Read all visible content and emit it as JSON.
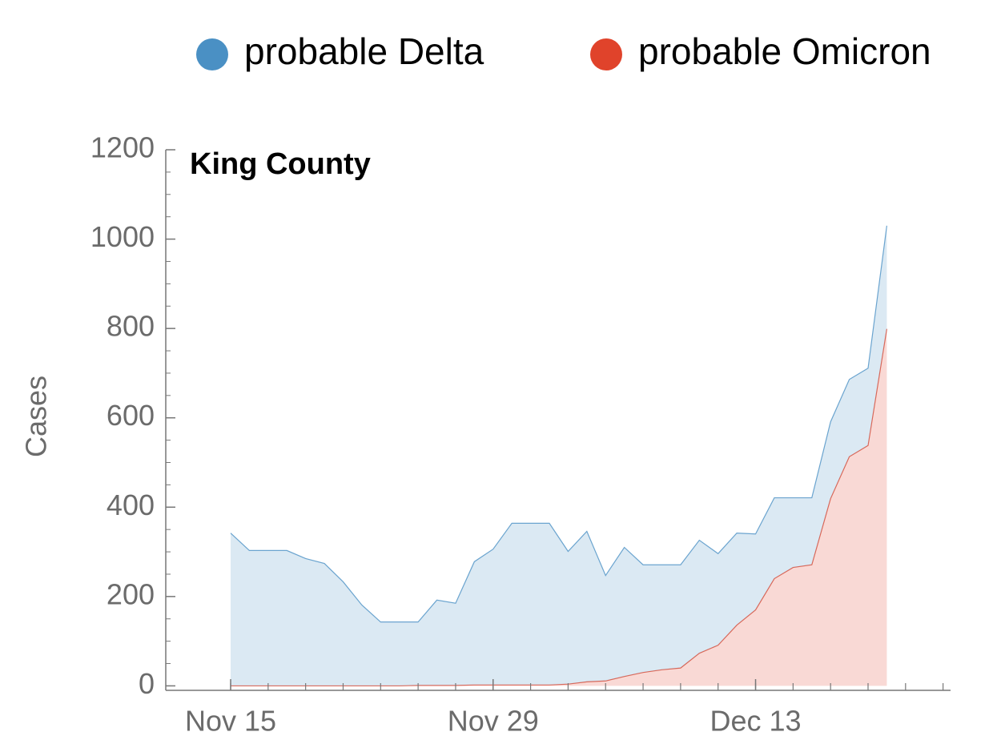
{
  "chart_data": {
    "type": "stacked-area",
    "title": "King County",
    "ylabel": "Cases",
    "categories": [
      "Nov 15",
      null,
      null,
      null,
      null,
      null,
      null,
      null,
      null,
      null,
      null,
      null,
      null,
      null,
      "Nov 29",
      null,
      null,
      null,
      null,
      null,
      null,
      null,
      null,
      null,
      null,
      null,
      null,
      null,
      "Dec 13",
      null,
      null,
      null,
      null,
      null,
      null,
      null
    ],
    "series": [
      {
        "name": "probable Delta",
        "color": "#4a90c4",
        "values": [
          342,
          303,
          303,
          303,
          285,
          274,
          233,
          181,
          143,
          143,
          142,
          191,
          184,
          276,
          304,
          362,
          362,
          362,
          297,
          337,
          236,
          289,
          241,
          235,
          231,
          253,
          205,
          206,
          170,
          181,
          156,
          150,
          172,
          173,
          173,
          231
        ]
      },
      {
        "name": "probable Omicron",
        "color": "#e0432b",
        "values": [
          0,
          0,
          0,
          0,
          0,
          0,
          0,
          0,
          0,
          0,
          1,
          1,
          1,
          2,
          2,
          2,
          2,
          2,
          4,
          9,
          11,
          21,
          30,
          36,
          40,
          73,
          91,
          136,
          170,
          240,
          265,
          271,
          419,
          513,
          538,
          799
        ]
      }
    ],
    "stack_order": [
      "probable Omicron",
      "probable Delta"
    ],
    "xlim": [
      -3.46,
      38.4
    ],
    "ylim": [
      -10,
      1200
    ],
    "yticks": [
      0,
      200,
      400,
      600,
      800,
      1000,
      1200
    ],
    "legend": "top"
  }
}
